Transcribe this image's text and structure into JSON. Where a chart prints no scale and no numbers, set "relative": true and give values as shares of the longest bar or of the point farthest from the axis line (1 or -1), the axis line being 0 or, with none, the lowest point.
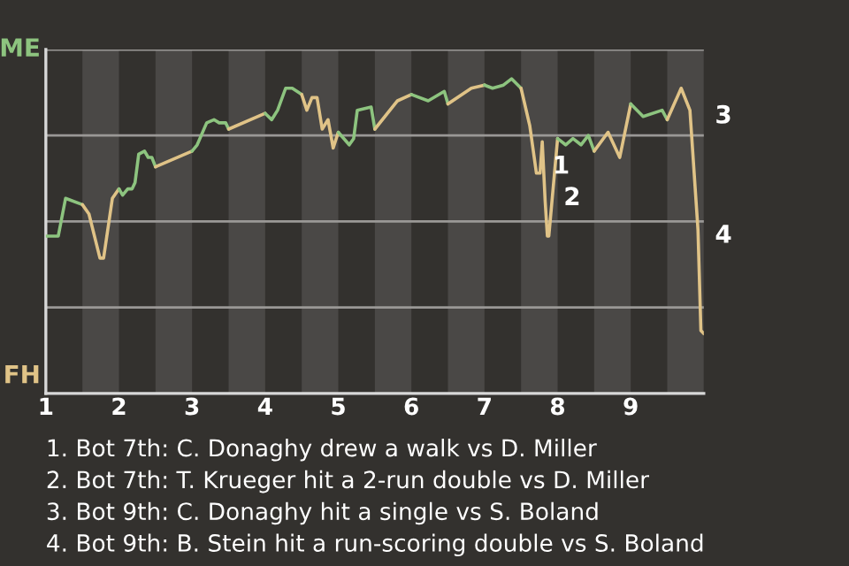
{
  "chart_data": {
    "type": "line",
    "relative": true,
    "series": [
      {
        "name": "ME",
        "color": "#8dc47f",
        "x": [
          1.0,
          1.17,
          1.27,
          1.5
        ],
        "values": [
          0.5,
          0.5,
          0.62,
          0.6
        ]
      },
      {
        "name": "FH",
        "color": "#e0c387",
        "x": [
          1.5,
          1.59,
          1.74,
          1.79,
          1.91,
          2.0
        ],
        "values": [
          0.6,
          0.57,
          0.43,
          0.43,
          0.62,
          0.65
        ]
      },
      {
        "color": "#8dc47f",
        "x": [
          2.0,
          2.05,
          2.12,
          2.18,
          2.22,
          2.27,
          2.35,
          2.4,
          2.45,
          2.5
        ],
        "values": [
          0.65,
          0.63,
          0.65,
          0.65,
          0.67,
          0.76,
          0.77,
          0.75,
          0.75,
          0.72
        ]
      },
      {
        "color": "#e0c387",
        "x": [
          2.5,
          3.0
        ],
        "values": [
          0.72,
          0.77
        ]
      },
      {
        "color": "#8dc47f",
        "x": [
          3.0,
          3.07,
          3.2,
          3.3,
          3.37,
          3.46,
          3.5
        ],
        "values": [
          0.77,
          0.79,
          0.86,
          0.87,
          0.86,
          0.86,
          0.84
        ]
      },
      {
        "color": "#e0c387",
        "x": [
          3.5,
          4.0
        ],
        "values": [
          0.84,
          0.89
        ]
      },
      {
        "color": "#8dc47f",
        "x": [
          4.0,
          4.09,
          4.17,
          4.28,
          4.37,
          4.5
        ],
        "values": [
          0.89,
          0.87,
          0.9,
          0.97,
          0.97,
          0.95
        ]
      },
      {
        "color": "#e0c387",
        "x": [
          4.5,
          4.57,
          4.64,
          4.71,
          4.78,
          4.86,
          4.93,
          5.0
        ],
        "values": [
          0.95,
          0.9,
          0.94,
          0.94,
          0.84,
          0.87,
          0.78,
          0.83
        ]
      },
      {
        "color": "#8dc47f",
        "x": [
          5.0,
          5.15,
          5.21,
          5.26,
          5.45,
          5.5
        ],
        "values": [
          0.83,
          0.79,
          0.81,
          0.9,
          0.91,
          0.84
        ]
      },
      {
        "color": "#e0c387",
        "x": [
          5.5,
          5.81,
          6.0
        ],
        "values": [
          0.84,
          0.93,
          0.95
        ]
      },
      {
        "color": "#8dc47f",
        "x": [
          6.0,
          6.23,
          6.45,
          6.5
        ],
        "values": [
          0.95,
          0.93,
          0.96,
          0.92
        ]
      },
      {
        "color": "#e0c387",
        "x": [
          6.5,
          6.82,
          7.0
        ],
        "values": [
          0.92,
          0.97,
          0.98
        ]
      },
      {
        "color": "#8dc47f",
        "x": [
          7.0,
          7.11,
          7.26,
          7.37,
          7.5
        ],
        "values": [
          0.98,
          0.97,
          0.98,
          1.0,
          0.97
        ]
      },
      {
        "color": "#e0c387",
        "x": [
          7.5,
          7.62,
          7.71,
          7.76,
          7.79,
          7.83,
          7.86,
          7.88,
          8.0
        ],
        "values": [
          0.97,
          0.85,
          0.7,
          0.7,
          0.8,
          0.61,
          0.5,
          0.5,
          0.81
        ]
      },
      {
        "color": "#8dc47f",
        "x": [
          8.0,
          8.11,
          8.21,
          8.32,
          8.42,
          8.5
        ],
        "values": [
          0.81,
          0.79,
          0.81,
          0.79,
          0.82,
          0.77
        ]
      },
      {
        "color": "#e0c387",
        "x": [
          8.5,
          8.69,
          8.85,
          9.0
        ],
        "values": [
          0.77,
          0.83,
          0.75,
          0.92
        ]
      },
      {
        "color": "#8dc47f",
        "x": [
          9.0,
          9.17,
          9.43,
          9.5
        ],
        "values": [
          0.92,
          0.88,
          0.9,
          0.87
        ]
      },
      {
        "color": "#e0c387",
        "x": [
          9.5,
          9.69,
          9.81,
          9.92,
          9.96,
          10.0
        ],
        "values": [
          0.87,
          0.97,
          0.9,
          0.52,
          0.2,
          0.19
        ]
      }
    ],
    "xlim": [
      1,
      10
    ],
    "xticks": [
      1,
      2,
      3,
      4,
      5,
      6,
      7,
      8,
      9
    ],
    "grid": "y",
    "bands": [
      {
        "axis": "x",
        "from": 1.5,
        "to": 2,
        "color": "#4a4846"
      },
      {
        "axis": "x",
        "from": 2.5,
        "to": 3,
        "color": "#4a4846"
      },
      {
        "axis": "x",
        "from": 3.5,
        "to": 4,
        "color": "#4a4846"
      },
      {
        "axis": "x",
        "from": 4.5,
        "to": 5,
        "color": "#4a4846"
      },
      {
        "axis": "x",
        "from": 5.5,
        "to": 6,
        "color": "#4a4846"
      },
      {
        "axis": "x",
        "from": 6.5,
        "to": 7,
        "color": "#4a4846"
      },
      {
        "axis": "x",
        "from": 7.5,
        "to": 8,
        "color": "#4a4846"
      },
      {
        "axis": "x",
        "from": 8.5,
        "to": 9,
        "color": "#4a4846"
      },
      {
        "axis": "x",
        "from": 9.5,
        "to": 10,
        "color": "#4a4846"
      }
    ],
    "annotations": [
      {
        "text": "1",
        "x": 7.78,
        "y": 0.72
      },
      {
        "text": "2",
        "x": 7.93,
        "y": 0.62
      },
      {
        "text": "3",
        "x": 10.0,
        "y": 0.88
      },
      {
        "text": "4",
        "x": 10.0,
        "y": 0.5
      },
      "1. Bot 7th: C. Donaghy drew a walk vs D. Miller",
      "2. Bot 7th: T. Krueger hit a 2-run double vs D. Miller",
      "3. Bot 9th: C. Donaghy hit a single vs S. Boland",
      "4. Bot 9th: B. Stein hit a run-scoring double vs S. Boland"
    ]
  }
}
